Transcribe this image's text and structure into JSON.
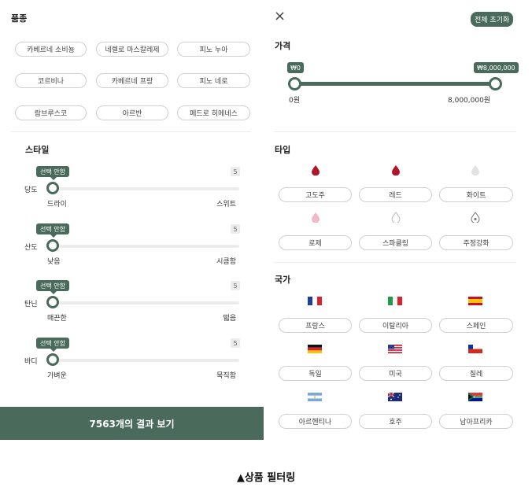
{
  "left": {
    "variety_title": "품종",
    "varieties": [
      "카베르네 소비뇽",
      "네렐로 마스칼레제",
      "피노 누아",
      "코르비나",
      "카베르네 프랑",
      "피노 네로",
      "람브루스코",
      "아르반",
      "페드로 히메네스"
    ],
    "style_title": "스타일",
    "sliders": [
      {
        "badge": "선택 안함",
        "count": "5",
        "label": "당도",
        "low": "드라이",
        "high": "스위트"
      },
      {
        "badge": "선택 안함",
        "count": "5",
        "label": "산도",
        "low": "낮음",
        "high": "시큼함"
      },
      {
        "badge": "선택 안함",
        "count": "5",
        "label": "탄닌",
        "low": "매끈한",
        "high": "떫음"
      },
      {
        "badge": "선택 안함",
        "count": "5",
        "label": "바디",
        "low": "가벼운",
        "high": "묵직함"
      }
    ],
    "result_button": "7563개의 결과 보기"
  },
  "right": {
    "close_icon": "×",
    "reset_button": "전체 초기화",
    "price_title": "가격",
    "price_min_tag": "₩0",
    "price_max_tag": "₩8,000,000",
    "price_min": "0원",
    "price_max": "8,000,000원",
    "type_title": "타입",
    "types": [
      {
        "label": "고도주",
        "icon": "drop-icon",
        "color": "#b0152a"
      },
      {
        "label": "레드",
        "icon": "drop-icon",
        "color": "#b0152a"
      },
      {
        "label": "화이트",
        "icon": "drop-icon",
        "color": "#e2e2e2"
      },
      {
        "label": "로제",
        "icon": "drop-icon",
        "color": "#f4b7c7"
      },
      {
        "label": "스파클링",
        "icon": "drop-outline-icon",
        "color": "#bdbdbd"
      },
      {
        "label": "주정강화",
        "icon": "drop-dot-icon",
        "color": "#7a7a7a"
      }
    ],
    "country_title": "국가",
    "countries": [
      {
        "label": "프랑스",
        "icon": "france-flag-icon"
      },
      {
        "label": "이탈리아",
        "icon": "italy-flag-icon"
      },
      {
        "label": "스페인",
        "icon": "spain-flag-icon"
      },
      {
        "label": "독일",
        "icon": "germany-flag-icon"
      },
      {
        "label": "미국",
        "icon": "usa-flag-icon"
      },
      {
        "label": "칠레",
        "icon": "chile-flag-icon"
      },
      {
        "label": "아르헨티나",
        "icon": "argentina-flag-icon"
      },
      {
        "label": "호주",
        "icon": "australia-flag-icon"
      },
      {
        "label": "남아프리카",
        "icon": "south-africa-flag-icon"
      }
    ]
  },
  "caption": "▲상품 필터링",
  "colors": {
    "accent": "#4a6b5c",
    "chip_border": "#cfcfcf"
  }
}
